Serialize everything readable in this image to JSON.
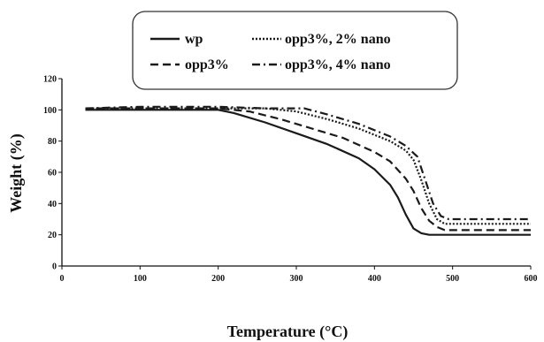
{
  "chart_data": {
    "type": "line",
    "xlabel": "Temperature (°C)",
    "ylabel": "Weight (%)",
    "xlim": [
      0,
      600
    ],
    "ylim": [
      0,
      120
    ],
    "x_ticks": [
      "0",
      "100",
      "200",
      "300",
      "400",
      "500",
      "600"
    ],
    "y_ticks": [
      "0",
      "20",
      "40",
      "60",
      "80",
      "100",
      "120"
    ],
    "grid": false,
    "legend_position": "top",
    "series": [
      {
        "name": "wp",
        "dash": "solid",
        "x": [
          30,
          100,
          200,
          220,
          260,
          300,
          340,
          380,
          400,
          420,
          430,
          440,
          450,
          460,
          470,
          500,
          600
        ],
        "y": [
          100,
          100,
          100,
          98,
          92,
          85,
          78,
          69,
          62,
          52,
          44,
          33,
          24,
          21,
          20,
          20,
          20
        ]
      },
      {
        "name": "opp3%",
        "dash": "dashed",
        "x": [
          30,
          100,
          200,
          240,
          280,
          320,
          360,
          400,
          420,
          440,
          450,
          460,
          470,
          480,
          490,
          500,
          600
        ],
        "y": [
          101,
          101,
          101,
          99,
          94,
          88,
          82,
          73,
          67,
          56,
          48,
          37,
          29,
          25,
          23,
          23,
          23
        ]
      },
      {
        "name": "opp3%, 2% nano",
        "dash": "dotted",
        "x": [
          30,
          100,
          200,
          260,
          300,
          340,
          380,
          420,
          440,
          450,
          460,
          470,
          480,
          490,
          500,
          600
        ],
        "y": [
          101,
          101,
          101,
          101,
          99,
          94,
          88,
          80,
          74,
          68,
          55,
          40,
          30,
          27,
          27,
          27
        ]
      },
      {
        "name": "opp3%, 4% nano",
        "dash": "dashdot",
        "x": [
          30,
          100,
          200,
          260,
          310,
          340,
          380,
          420,
          440,
          455,
          465,
          475,
          485,
          495,
          500,
          600
        ],
        "y": [
          101,
          102,
          102,
          101,
          101,
          97,
          91,
          83,
          77,
          70,
          55,
          40,
          32,
          30,
          30,
          30
        ]
      }
    ]
  },
  "colors": {
    "line": "#1a1a1a",
    "legend_border": "#333333"
  }
}
